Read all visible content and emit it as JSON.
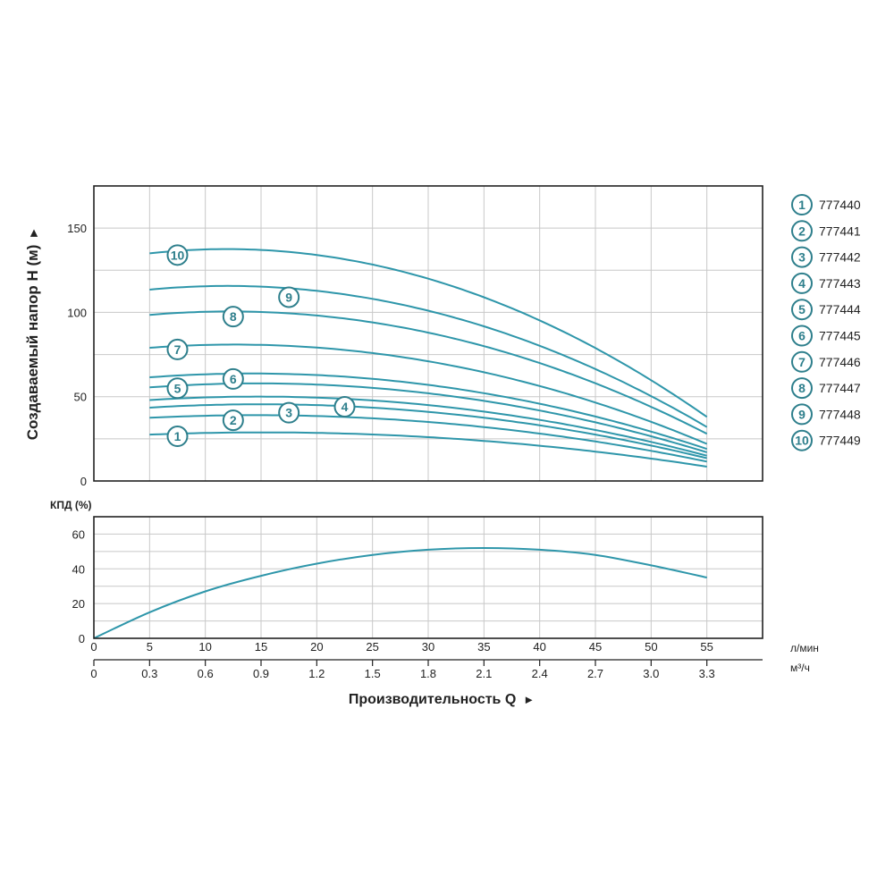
{
  "chart_data": [
    {
      "type": "line",
      "ylabel": "Создаваемый напор H (м)",
      "ylabel_arrow": "►",
      "y_ticks": [
        "0",
        "50",
        "100",
        "150"
      ],
      "ylim": [
        0,
        175
      ],
      "x_unit": "л/мин",
      "xlim": [
        0,
        60
      ],
      "line_color": "#2e96aa",
      "series": [
        {
          "name": "777440",
          "label": "1",
          "x": [
            5,
            55
          ],
          "values": [
            27.5,
            8.5
          ],
          "mid": 26
        },
        {
          "name": "777441",
          "label": "2",
          "x": [
            5,
            55
          ],
          "values": [
            37.5,
            11.5
          ],
          "mid": 35
        },
        {
          "name": "777442",
          "label": "3",
          "x": [
            5,
            55
          ],
          "values": [
            43.5,
            13.5
          ],
          "mid": 41
        },
        {
          "name": "777443",
          "label": "4",
          "x": [
            5,
            55
          ],
          "values": [
            48,
            15
          ],
          "mid": 45
        },
        {
          "name": "777444",
          "label": "5",
          "x": [
            5,
            55
          ],
          "values": [
            55.5,
            17
          ],
          "mid": 52
        },
        {
          "name": "777445",
          "label": "6",
          "x": [
            5,
            55
          ],
          "values": [
            61.5,
            19
          ],
          "mid": 57
        },
        {
          "name": "777446",
          "label": "7",
          "x": [
            5,
            55
          ],
          "values": [
            79,
            22
          ],
          "mid": 71
        },
        {
          "name": "777447",
          "label": "8",
          "x": [
            5,
            55
          ],
          "values": [
            98.5,
            28
          ],
          "mid": 88
        },
        {
          "name": "777448",
          "label": "9",
          "x": [
            5,
            55
          ],
          "values": [
            113.5,
            32
          ],
          "mid": 101
        },
        {
          "name": "777449",
          "label": "10",
          "x": [
            5,
            55
          ],
          "values": [
            135,
            38
          ],
          "mid": 120
        }
      ],
      "badges": [
        {
          "label": "1",
          "x": 7.5,
          "y": 26.5
        },
        {
          "label": "2",
          "x": 12.5,
          "y": 36
        },
        {
          "label": "3",
          "x": 17.5,
          "y": 40.5
        },
        {
          "label": "4",
          "x": 22.5,
          "y": 44
        },
        {
          "label": "5",
          "x": 7.5,
          "y": 55
        },
        {
          "label": "6",
          "x": 12.5,
          "y": 60.5
        },
        {
          "label": "7",
          "x": 7.5,
          "y": 78
        },
        {
          "label": "8",
          "x": 12.5,
          "y": 97.5
        },
        {
          "label": "9",
          "x": 17.5,
          "y": 109
        },
        {
          "label": "10",
          "x": 7.5,
          "y": 134
        }
      ]
    },
    {
      "type": "line",
      "ylabel": "КПД (%)",
      "y_ticks": [
        "0",
        "20",
        "40",
        "60"
      ],
      "ylim": [
        0,
        70
      ],
      "xlim": [
        0,
        60
      ],
      "series": [
        {
          "x": [
            0,
            5,
            10,
            15,
            20,
            25,
            30,
            35,
            40,
            45,
            50,
            55
          ],
          "values": [
            0,
            15,
            27,
            36,
            43,
            48,
            51,
            52,
            51,
            48,
            42,
            35
          ]
        }
      ]
    }
  ],
  "x_axis_lpm": {
    "unit": "л/мин",
    "ticks": [
      "0",
      "5",
      "10",
      "15",
      "20",
      "25",
      "30",
      "35",
      "40",
      "45",
      "50",
      "55"
    ]
  },
  "x_axis_m3h": {
    "unit": "м³/ч",
    "ticks": [
      "0",
      "0.3",
      "0.6",
      "0.9",
      "1.2",
      "1.5",
      "1.8",
      "2.1",
      "2.4",
      "2.7",
      "3.0",
      "3.3"
    ]
  },
  "xlabel": "Производительность Q",
  "xlabel_arrow": "►",
  "legend": [
    {
      "label": "1",
      "name": "777440"
    },
    {
      "label": "2",
      "name": "777441"
    },
    {
      "label": "3",
      "name": "777442"
    },
    {
      "label": "4",
      "name": "777443"
    },
    {
      "label": "5",
      "name": "777444"
    },
    {
      "label": "6",
      "name": "777445"
    },
    {
      "label": "7",
      "name": "777446"
    },
    {
      "label": "8",
      "name": "777447"
    },
    {
      "label": "9",
      "name": "777448"
    },
    {
      "label": "10",
      "name": "777449"
    }
  ],
  "colors": {
    "line": "#2e96aa",
    "badge": "#2e7f8c"
  }
}
